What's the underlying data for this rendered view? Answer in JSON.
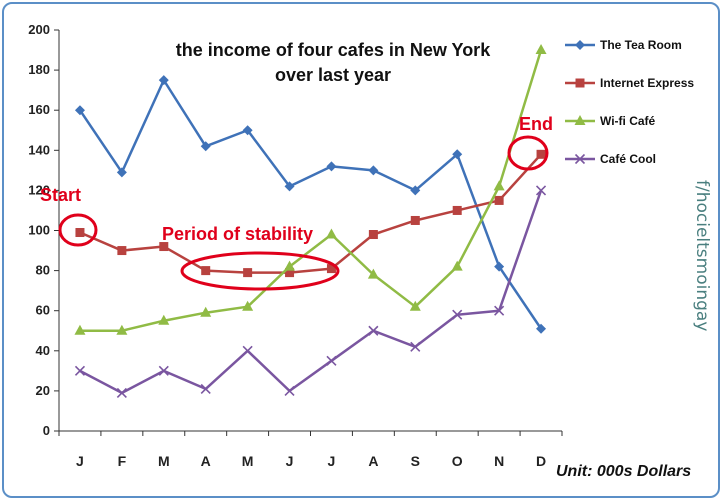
{
  "chart_data": {
    "type": "line",
    "title_lines": [
      "the income of four cafes in New York",
      "over last year"
    ],
    "categories": [
      "J",
      "F",
      "M",
      "A",
      "M",
      "J",
      "J",
      "A",
      "S",
      "O",
      "N",
      "D"
    ],
    "ylim": [
      0,
      200
    ],
    "yticks": [
      0,
      20,
      40,
      60,
      80,
      100,
      120,
      140,
      160,
      180,
      200
    ],
    "grid": false,
    "legend_position": "top-right",
    "unit_label": "Unit: 000s Dollars",
    "series": [
      {
        "name": "The Tea Room",
        "color": "#3f72b8",
        "marker": "diamond",
        "values": [
          160,
          129,
          175,
          142,
          150,
          122,
          132,
          130,
          120,
          138,
          82,
          51
        ]
      },
      {
        "name": "Internet Express",
        "color": "#b8423f",
        "marker": "square",
        "values": [
          99,
          90,
          92,
          80,
          79,
          79,
          81,
          98,
          105,
          110,
          115,
          138
        ]
      },
      {
        "name": "Wi-fi Café",
        "color": "#90bb45",
        "marker": "triangle",
        "values": [
          50,
          50,
          55,
          59,
          62,
          82,
          98,
          78,
          62,
          82,
          122,
          190
        ]
      },
      {
        "name": "Café Cool",
        "color": "#7a56a0",
        "marker": "x",
        "values": [
          30,
          19,
          30,
          21,
          40,
          20,
          35,
          50,
          42,
          58,
          60,
          120
        ]
      }
    ],
    "annotations": [
      {
        "text": "Start",
        "color": "#e0001b"
      },
      {
        "text": "Period of stability",
        "color": "#e0001b"
      },
      {
        "text": "End",
        "color": "#e0001b"
      }
    ]
  },
  "watermark": "f/hocieltsmoingay"
}
